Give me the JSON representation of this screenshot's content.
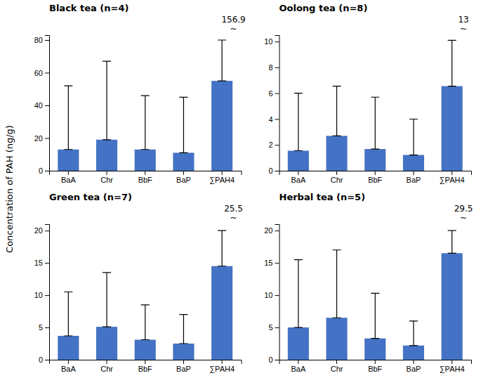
{
  "ylabel": "Concentration of PAH (ng/g)",
  "chart_data": [
    {
      "type": "bar",
      "title": "Black tea (n=4)",
      "categories": [
        "BaA",
        "Chr",
        "BbF",
        "BaP",
        "∑PAH4"
      ],
      "values": [
        13.0,
        19.0,
        13.0,
        11.0,
        55.0
      ],
      "errors_upper": [
        39.0,
        48.0,
        33.0,
        34.0,
        25.0
      ],
      "errors_lower": [
        0.0,
        0.0,
        0.0,
        0.0,
        0.0
      ],
      "color": "#4472C4",
      "ylim": [
        0,
        83
      ],
      "yticks": [
        0,
        20,
        40,
        60,
        80
      ],
      "grid": false,
      "annotations": [
        {
          "text": "156.9",
          "category": "∑PAH4"
        },
        {
          "text": "~",
          "category": "∑PAH4"
        }
      ]
    },
    {
      "type": "bar",
      "title": "Oolong tea (n=8)",
      "categories": [
        "BaA",
        "Chr",
        "BbF",
        "BaP",
        "∑PAH4"
      ],
      "values": [
        1.55,
        2.7,
        1.68,
        1.22,
        6.55
      ],
      "errors_upper": [
        4.45,
        3.85,
        4.02,
        2.78,
        3.55
      ],
      "errors_lower": [
        0.0,
        0.0,
        0.0,
        0.0,
        0.0
      ],
      "color": "#4472C4",
      "ylim": [
        0,
        10.5
      ],
      "yticks": [
        0,
        2,
        4,
        6,
        8,
        10
      ],
      "grid": false,
      "annotations": [
        {
          "text": "13",
          "category": "∑PAH4"
        },
        {
          "text": "~",
          "category": "∑PAH4"
        }
      ]
    },
    {
      "type": "bar",
      "title": "Green tea (n=7)",
      "categories": [
        "BaA",
        "Chr",
        "BbF",
        "BaP",
        "∑PAH4"
      ],
      "values": [
        3.7,
        5.1,
        3.1,
        2.5,
        14.5
      ],
      "errors_upper": [
        6.8,
        8.4,
        5.4,
        4.5,
        5.5
      ],
      "errors_lower": [
        0.0,
        0.0,
        0.0,
        0.0,
        0.0
      ],
      "color": "#4472C4",
      "ylim": [
        0,
        21
      ],
      "yticks": [
        0,
        5,
        10,
        15,
        20
      ],
      "grid": false,
      "annotations": [
        {
          "text": "25.5",
          "category": "∑PAH4"
        },
        {
          "text": "~",
          "category": "∑PAH4"
        }
      ]
    },
    {
      "type": "bar",
      "title": "Herbal tea (n=5)",
      "categories": [
        "BaA",
        "Chr",
        "BbF",
        "BaP",
        "∑PAH4"
      ],
      "values": [
        5.0,
        6.5,
        3.3,
        2.2,
        16.5
      ],
      "errors_upper": [
        10.5,
        10.5,
        7.0,
        3.8,
        3.5
      ],
      "errors_lower": [
        0.0,
        0.0,
        0.0,
        0.0,
        0.0
      ],
      "color": "#4472C4",
      "ylim": [
        0,
        21
      ],
      "yticks": [
        0,
        5,
        10,
        15,
        20
      ],
      "grid": false,
      "annotations": [
        {
          "text": "29.5",
          "category": "∑PAH4"
        },
        {
          "text": "~",
          "category": "∑PAH4"
        }
      ]
    }
  ]
}
